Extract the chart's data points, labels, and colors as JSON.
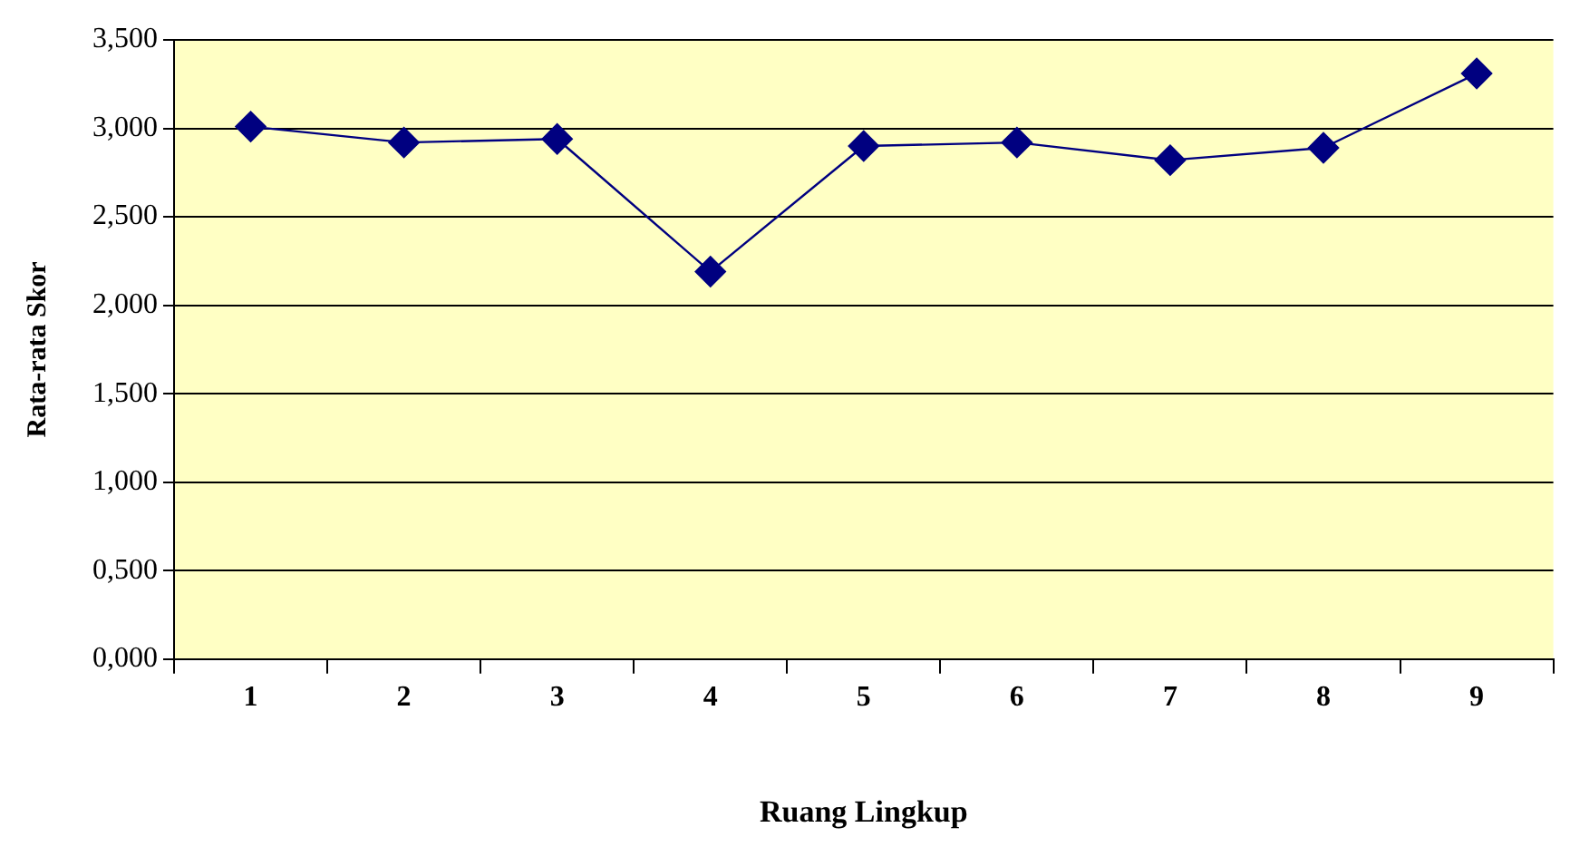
{
  "chart_data": {
    "type": "line",
    "xlabel": "Ruang Lingkup",
    "ylabel": "Rata-rata Skor",
    "categories": [
      "1",
      "2",
      "3",
      "4",
      "5",
      "6",
      "7",
      "8",
      "9"
    ],
    "series": [
      {
        "color": "#000080",
        "values": [
          3.01,
          2.92,
          2.94,
          2.19,
          2.9,
          2.92,
          2.82,
          2.89,
          3.31
        ]
      }
    ],
    "ylim": [
      0,
      3.5
    ],
    "yticks": [
      {
        "value": 0,
        "label": "0,000"
      },
      {
        "value": 0.5,
        "label": "0,500"
      },
      {
        "value": 1,
        "label": "1,000"
      },
      {
        "value": 1.5,
        "label": "1,500"
      },
      {
        "value": 2,
        "label": "2,000"
      },
      {
        "value": 2.5,
        "label": "2,500"
      },
      {
        "value": 3,
        "label": "3,000"
      },
      {
        "value": 3.5,
        "label": "3,500"
      }
    ],
    "grid": "y",
    "legend": false,
    "marker": "diamond",
    "line_style": "solid"
  }
}
